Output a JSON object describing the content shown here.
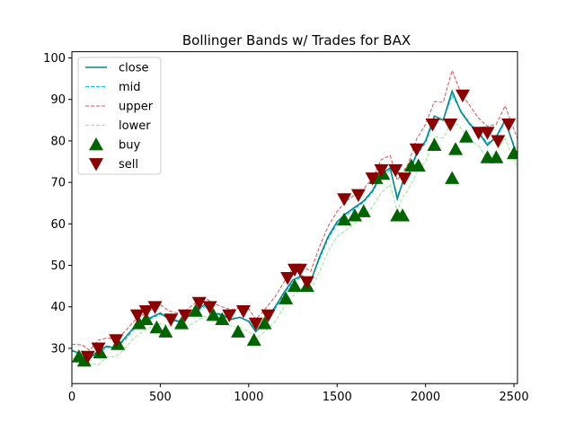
{
  "chart_data": {
    "type": "line",
    "title": "Bollinger Bands w/ Trades for BAX",
    "xlabel": "",
    "ylabel": "",
    "xlim": [
      0,
      2520
    ],
    "ylim": [
      21.5,
      101.5
    ],
    "xticks": [
      0,
      500,
      1000,
      1500,
      2000,
      2500
    ],
    "yticks": [
      30,
      40,
      50,
      60,
      70,
      80,
      90,
      100
    ],
    "grid": false,
    "legend_position": "top-left",
    "x": [
      0,
      60,
      100,
      150,
      200,
      250,
      300,
      350,
      400,
      450,
      500,
      550,
      600,
      650,
      700,
      750,
      800,
      850,
      900,
      950,
      1000,
      1040,
      1080,
      1150,
      1200,
      1250,
      1300,
      1350,
      1400,
      1450,
      1500,
      1550,
      1600,
      1650,
      1700,
      1750,
      1800,
      1840,
      1870,
      1900,
      1950,
      2000,
      2050,
      2100,
      2150,
      2200,
      2250,
      2300,
      2350,
      2400,
      2450,
      2520
    ],
    "series": [
      {
        "name": "close",
        "color": "#008b8b",
        "style": "solid",
        "values": [
          29.5,
          28.5,
          27.5,
          29.5,
          30.5,
          30.0,
          32.5,
          35.0,
          36.5,
          37.5,
          38.5,
          37.0,
          36.5,
          37.5,
          39.0,
          40.5,
          38.5,
          38.0,
          37.0,
          37.5,
          36.5,
          34.0,
          36.0,
          40.0,
          43.5,
          46.5,
          47.5,
          46.0,
          52.0,
          57.0,
          60.5,
          62.5,
          64.0,
          65.5,
          68.0,
          72.0,
          73.5,
          66.0,
          70.0,
          71.5,
          77.0,
          80.0,
          86.0,
          85.0,
          92.0,
          87.0,
          84.0,
          82.0,
          79.0,
          81.0,
          85.0,
          76.0
        ]
      },
      {
        "name": "mid",
        "color": "#00bfff",
        "style": "dashed",
        "values": [
          29.3,
          28.8,
          28.0,
          29.0,
          30.2,
          30.1,
          32.0,
          34.5,
          36.0,
          37.2,
          38.2,
          37.2,
          36.8,
          37.3,
          38.7,
          40.0,
          38.8,
          38.2,
          37.3,
          37.4,
          36.7,
          34.8,
          36.2,
          39.5,
          43.0,
          46.0,
          47.2,
          46.3,
          51.5,
          56.5,
          60.0,
          62.0,
          63.6,
          65.2,
          67.6,
          71.5,
          73.0,
          66.8,
          69.5,
          71.2,
          76.5,
          79.5,
          85.2,
          85.0,
          91.0,
          87.3,
          84.3,
          82.2,
          79.5,
          80.8,
          84.5,
          77.0
        ]
      },
      {
        "name": "upper",
        "color": "#e05050",
        "style": "dashed",
        "values": [
          31.0,
          30.8,
          29.5,
          32.0,
          32.5,
          32.2,
          34.0,
          36.5,
          38.0,
          39.2,
          40.5,
          39.0,
          38.5,
          39.3,
          41.0,
          42.3,
          40.8,
          40.0,
          39.3,
          39.7,
          39.5,
          37.0,
          38.8,
          42.5,
          46.0,
          49.3,
          50.0,
          48.5,
          54.5,
          59.5,
          63.0,
          65.5,
          67.0,
          68.5,
          71.0,
          75.5,
          76.5,
          70.5,
          72.5,
          74.3,
          80.5,
          84.0,
          89.5,
          89.3,
          97.0,
          91.5,
          88.5,
          85.5,
          83.5,
          84.0,
          88.5,
          80.5
        ]
      },
      {
        "name": "lower",
        "color": "#90ee90",
        "style": "dashed",
        "values": [
          27.6,
          26.8,
          26.5,
          26.0,
          28.0,
          28.0,
          30.0,
          32.5,
          34.0,
          35.2,
          36.0,
          35.4,
          35.0,
          35.3,
          36.4,
          37.7,
          36.8,
          36.3,
          35.3,
          35.1,
          34.0,
          32.5,
          33.6,
          36.5,
          40.0,
          42.7,
          44.4,
          44.1,
          48.5,
          53.5,
          57.0,
          58.5,
          60.2,
          61.9,
          64.2,
          67.5,
          69.5,
          63.0,
          66.5,
          68.1,
          72.5,
          75.0,
          81.0,
          80.7,
          85.0,
          83.1,
          80.1,
          78.9,
          75.5,
          77.6,
          80.5,
          73.5
        ]
      }
    ],
    "buy": {
      "name": "buy",
      "color": "#006400",
      "marker": "triangle-up",
      "x": [
        40,
        70,
        160,
        260,
        380,
        420,
        480,
        530,
        620,
        700,
        800,
        850,
        940,
        1030,
        1090,
        1210,
        1260,
        1330,
        1540,
        1600,
        1650,
        1720,
        1760,
        1840,
        1870,
        1920,
        1960,
        2050,
        2150,
        2170,
        2230,
        2350,
        2400,
        2500
      ],
      "y": [
        28,
        27,
        29,
        31,
        36,
        37,
        35,
        34,
        36,
        39,
        38,
        37,
        34,
        32,
        36,
        42,
        45,
        45,
        61,
        62,
        63,
        71,
        72,
        62,
        62,
        74,
        74,
        79,
        71,
        78,
        81,
        76,
        76,
        77
      ]
    },
    "sell": {
      "name": "sell",
      "color": "#8b0000",
      "marker": "triangle-down",
      "x": [
        90,
        150,
        250,
        370,
        420,
        470,
        560,
        640,
        720,
        780,
        890,
        970,
        1040,
        1110,
        1220,
        1260,
        1290,
        1330,
        1540,
        1620,
        1700,
        1750,
        1830,
        1880,
        1950,
        2040,
        2140,
        2210,
        2300,
        2350,
        2410,
        2470
      ],
      "y": [
        28,
        30,
        32,
        38,
        39,
        40,
        37,
        38,
        41,
        40,
        38,
        39,
        36,
        38,
        47,
        49,
        49,
        46,
        66,
        67,
        71,
        73,
        73,
        71,
        78,
        84,
        84,
        91,
        82,
        82,
        80,
        84
      ]
    }
  }
}
